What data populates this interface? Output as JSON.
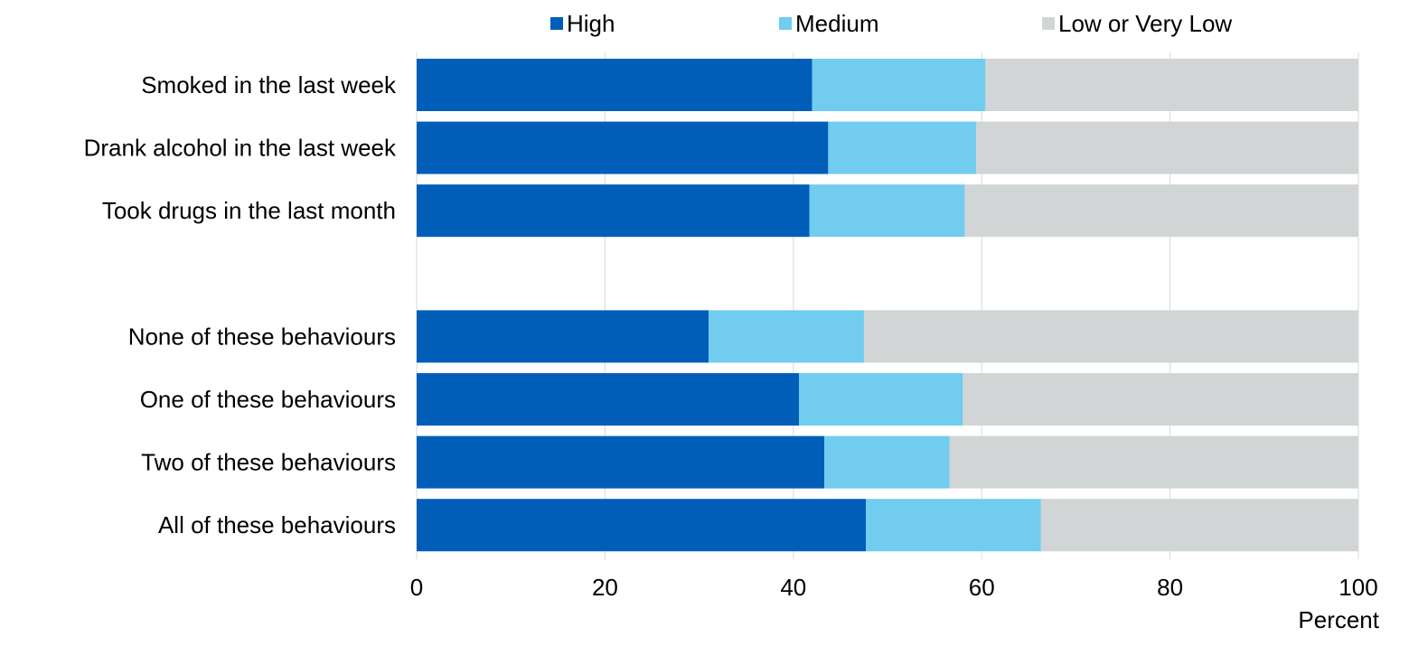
{
  "chart_data": {
    "type": "bar",
    "orientation": "horizontal",
    "stacked": true,
    "title": "",
    "xlabel": "Percent",
    "ylabel": "",
    "xlim": [
      0,
      100
    ],
    "xticks": [
      "0",
      "20",
      "40",
      "60",
      "80",
      "100"
    ],
    "grid": true,
    "legend_position": "top",
    "categories": [
      "Smoked in the last week",
      "Drank alcohol in the last week",
      "Took drugs in the last month",
      "",
      "None of these behaviours",
      "One of these behaviours",
      "Two of these behaviours",
      "All of these behaviours"
    ],
    "series": [
      {
        "name": "High",
        "color": "#005EB8",
        "values": [
          42,
          43.7,
          41.7,
          null,
          31,
          40.6,
          43.3,
          47.7
        ]
      },
      {
        "name": "Medium",
        "color": "#71CCEF",
        "values": [
          18.4,
          15.7,
          16.5,
          null,
          16.5,
          17.4,
          13.3,
          18.6
        ]
      },
      {
        "name": "Low or Very Low",
        "color": "#D1D5D5",
        "values": [
          39.6,
          40.6,
          41.8,
          null,
          52.5,
          42,
          43.4,
          33.7
        ]
      }
    ]
  }
}
